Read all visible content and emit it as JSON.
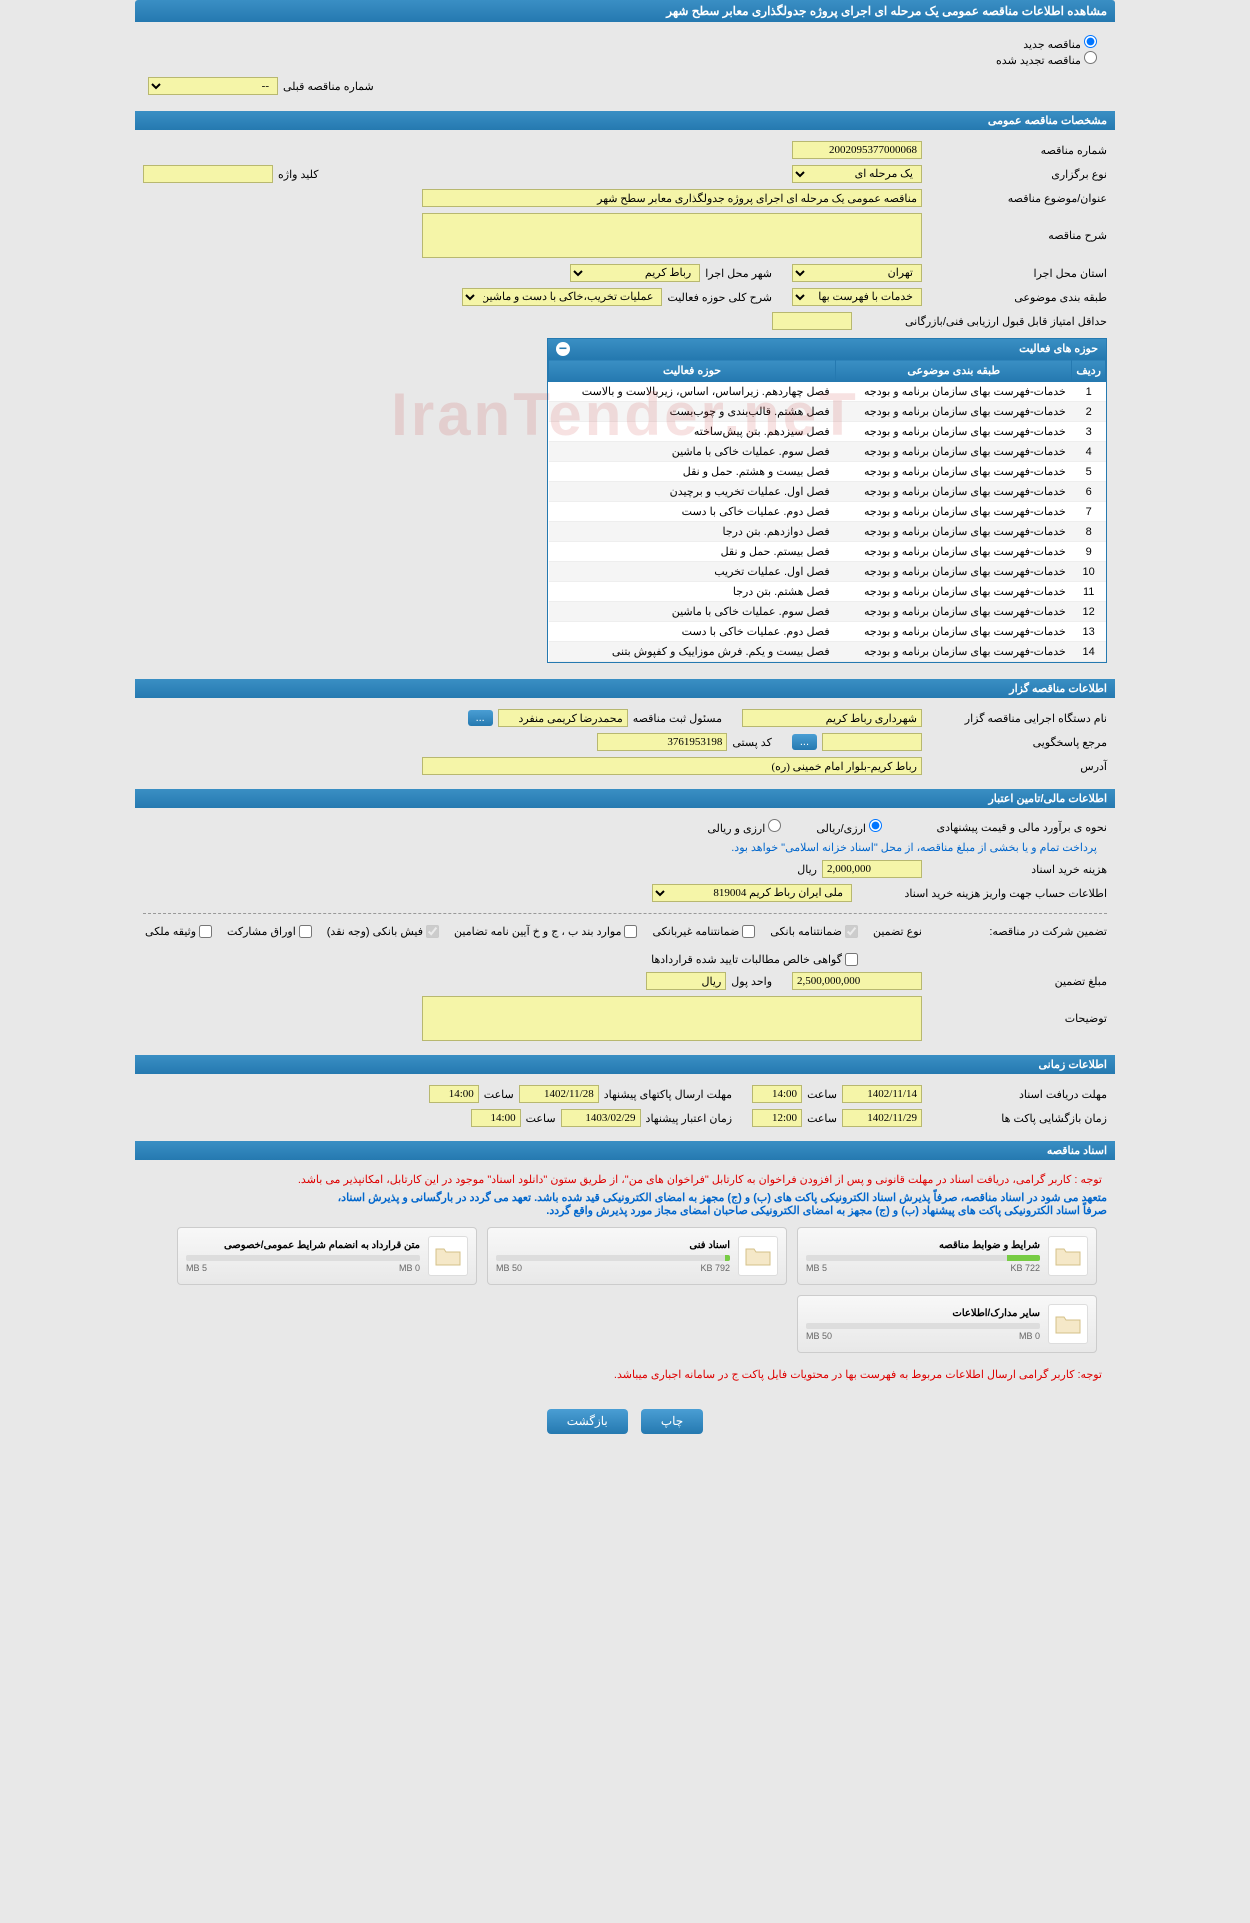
{
  "page_title": "مشاهده اطلاعات مناقصه عمومی یک مرحله ای اجرای پروژه جدولگذاری معابر سطح شهر",
  "radio": {
    "new": "مناقصه جدید",
    "renewed": "مناقصه تجدید شده"
  },
  "prev_tender": {
    "label": "شماره مناقصه قبلی",
    "value": "--"
  },
  "sections": {
    "general": "مشخصات مناقصه عمومی",
    "organizer": "اطلاعات مناقصه گزار",
    "financial": "اطلاعات مالی/تامین اعتبار",
    "timing": "اطلاعات زمانی",
    "docs": "اسناد مناقصه"
  },
  "general": {
    "tender_no_label": "شماره مناقصه",
    "tender_no": "2002095377000068",
    "hold_type_label": "نوع برگزاری",
    "hold_type": "یک مرحله ای",
    "keyword_label": "کلید واژه",
    "keyword": "",
    "subject_label": "عنوان/موضوع مناقصه",
    "subject": "مناقصه عمومی یک مرحله ای اجرای پروژه جدولگذاری معابر سطح شهر",
    "desc_label": "شرح مناقصه",
    "desc": "",
    "province_label": "استان محل اجرا",
    "province": "تهران",
    "city_label": "شهر محل اجرا",
    "city": "رباط کریم",
    "category_label": "طبقه بندی موضوعی",
    "category": "خدمات با فهرست بها",
    "field_label": "شرح کلی حوزه فعالیت",
    "field": "عملیات تخریب،خاکی با دست و ماشین،قالب بندی و چوب",
    "min_score_label": "حداقل امتیاز قابل قبول ارزیابی فنی/بازرگانی",
    "min_score": ""
  },
  "activities": {
    "panel_title": "حوزه های فعالیت",
    "col_num": "ردیف",
    "col_cat": "طبقه بندی موضوعی",
    "col_field": "حوزه فعالیت",
    "rows": [
      {
        "n": "1",
        "cat": "خدمات-فهرست بهای سازمان برنامه و بودجه",
        "field": "فصل چهاردهم. زیراساس، اساس، زیربالاست  و بالاست"
      },
      {
        "n": "2",
        "cat": "خدمات-فهرست بهای سازمان برنامه و بودجه",
        "field": "فصل هشتم. قالب‌بندی و چوب‌بست"
      },
      {
        "n": "3",
        "cat": "خدمات-فهرست بهای سازمان برنامه و بودجه",
        "field": "فصل سیزدهم. بتن پیش‌ساخته"
      },
      {
        "n": "4",
        "cat": "خدمات-فهرست بهای سازمان برنامه و بودجه",
        "field": "فصل سوم. عملیات خاکی با ماشین"
      },
      {
        "n": "5",
        "cat": "خدمات-فهرست بهای سازمان برنامه و بودجه",
        "field": "فصل بیست و هشتم. حمل و نقل"
      },
      {
        "n": "6",
        "cat": "خدمات-فهرست بهای سازمان برنامه و بودجه",
        "field": "فصل اول. عملیات تخریب و برچیدن"
      },
      {
        "n": "7",
        "cat": "خدمات-فهرست بهای سازمان برنامه و بودجه",
        "field": "فصل دوم. عملیات خاکی با دست"
      },
      {
        "n": "8",
        "cat": "خدمات-فهرست بهای سازمان برنامه و بودجه",
        "field": "فصل دوازدهم. بتن درجا"
      },
      {
        "n": "9",
        "cat": "خدمات-فهرست بهای سازمان برنامه و بودجه",
        "field": "فصل بیستم. حمل و نقل"
      },
      {
        "n": "10",
        "cat": "خدمات-فهرست بهای سازمان برنامه و بودجه",
        "field": "فصل اول. عملیات تخریب"
      },
      {
        "n": "11",
        "cat": "خدمات-فهرست بهای سازمان برنامه و بودجه",
        "field": "فصل هشتم. بتن درجا"
      },
      {
        "n": "12",
        "cat": "خدمات-فهرست بهای سازمان برنامه و بودجه",
        "field": "فصل سوم. عملیات خاکی با ماشین"
      },
      {
        "n": "13",
        "cat": "خدمات-فهرست بهای سازمان برنامه و بودجه",
        "field": "فصل دوم. عملیات خاکی با دست"
      },
      {
        "n": "14",
        "cat": "خدمات-فهرست بهای سازمان برنامه و بودجه",
        "field": "فصل بیست و یکم. فرش موزاییک و کفپوش بتنی"
      }
    ]
  },
  "organizer": {
    "exec_label": "نام دستگاه اجرایی مناقصه گزار",
    "exec": "شهرداری رباط کریم",
    "reg_label": "مسئول ثبت مناقصه",
    "reg": "محمدرضا کریمی منفرد",
    "contact_label": "مرجع پاسخگویی",
    "contact": "",
    "postal_label": "کد پستی",
    "postal": "3761953198",
    "address_label": "آدرس",
    "address": "رباط کریم-بلوار امام خمینی (ره)",
    "more": "..."
  },
  "financial": {
    "estimate_label": "نحوه ی برآورد مالی و قیمت پیشنهادی",
    "rial_opt": "ارزی/ریالی",
    "currency_opt": "ارزی و ریالی",
    "note1": "پرداخت تمام و یا بخشی از مبلغ مناقصه، از محل \"اسناد خزانه اسلامی\" خواهد بود.",
    "buy_cost_label": "هزینه خرید اسناد",
    "buy_cost": "2,000,000",
    "rial": "ریال",
    "account_label": "اطلاعات حساب جهت واریز هزینه خرید اسناد",
    "account": "ملی ایران رباط کریم 819004",
    "guarantee_label": "تضمین شرکت در مناقصه:",
    "guarantee_type_label": "نوع تضمین",
    "chk1": "ضمانتنامه بانکی",
    "chk2": "ضمانتنامه غیربانکی",
    "chk3": "موارد بند ب ، ج و خ آیین نامه تضامین",
    "chk4": "فیش بانکی (وجه نقد)",
    "chk5": "اوراق مشارکت",
    "chk6": "وثیقه ملکی",
    "chk7": "گواهی خالص مطالبات تایید شده قراردادها",
    "amount_label": "مبلغ تضمین",
    "amount": "2,500,000,000",
    "unit_label": "واحد پول",
    "unit": "ریال",
    "remarks_label": "توضیحات",
    "remarks": ""
  },
  "timing": {
    "receive_label": "مهلت دریافت اسناد",
    "receive_date": "1402/11/14",
    "receive_time": "14:00",
    "submit_label": "مهلت ارسال پاکتهای پیشنهاد",
    "submit_date": "1402/11/28",
    "submit_time": "14:00",
    "open_label": "زمان بازگشایی پاکت ها",
    "open_date": "1402/11/29",
    "open_time": "12:00",
    "validity_label": "زمان اعتبار پیشنهاد",
    "validity_date": "1403/02/29",
    "validity_time": "14:00",
    "time_label": "ساعت"
  },
  "docs": {
    "note_red": "توجه : کاربر گرامی، دریافت اسناد در مهلت قانونی و پس از افزودن فراخوان به کارتابل \"فراخوان های من\"، از طریق ستون \"دانلود اسناد\" موجود در این کارتابل، امکانپذیر می باشد.",
    "note_blue1": "متعهد می شود در اسناد مناقصه، صرفاً پذیرش اسناد الکترونیکی پاکت های (ب) و (ج) مجهز به امضای الکترونیکی قید شده باشد. تعهد می گردد در بارگسانی و پذیرش اسناد،",
    "note_blue2": "صرفاً اسناد الکترونیکی پاکت های پیشنهاد (ب) و (ج) مجهز به امضای الکترونیکی صاحبان امضای مجاز مورد پذیرش واقع گردد.",
    "note_bottom": "توجه: کاربر گرامی ارسال اطلاعات مربوط به فهرست بها در محتویات فایل پاکت ج در سامانه اجباری میباشد.",
    "files": [
      {
        "title": "شرایط و ضوابط مناقصه",
        "used": "722 KB",
        "total": "5 MB",
        "pct": 14
      },
      {
        "title": "اسناد فنی",
        "used": "792 KB",
        "total": "50 MB",
        "pct": 2
      },
      {
        "title": "متن قرارداد به انضمام شرایط عمومی/خصوصی",
        "used": "0 MB",
        "total": "5 MB",
        "pct": 0
      },
      {
        "title": "سایر مدارک/اطلاعات",
        "used": "0 MB",
        "total": "50 MB",
        "pct": 0
      }
    ]
  },
  "buttons": {
    "print": "چاپ",
    "back": "بازگشت"
  },
  "watermark": "IranTender.neT"
}
